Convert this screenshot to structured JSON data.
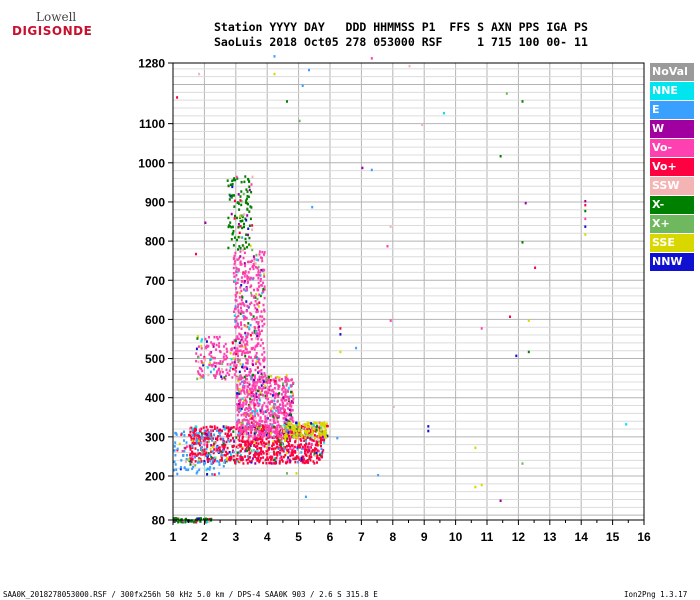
{
  "logo": {
    "line1": "Lowell",
    "line2": "DIGISONDE"
  },
  "header": {
    "line1": "Station YYYY DAY   DDD HHMMSS P1  FFS S AXN PPS IGA PS",
    "line2": "SaoLuis 2018 Oct05 278 053000 RSF     1 715 100 00- 11"
  },
  "footer": {
    "left": "SAA0K_2018278053000.RSF / 300fx256h 50 kHz 5.0 km / DPS-4 SAA0K 903 / 2.6 S 315.8 E",
    "right": "Ion2Png 1.3.17"
  },
  "legend": [
    {
      "label": "NoVal",
      "color": "#9a9a9a"
    },
    {
      "label": "NNE",
      "color": "#00e5ee"
    },
    {
      "label": "E",
      "color": "#3aa0ff"
    },
    {
      "label": "W",
      "color": "#a000a0"
    },
    {
      "label": "Vo-",
      "color": "#ff40b0"
    },
    {
      "label": "Vo+",
      "color": "#ff0040"
    },
    {
      "label": "SSW",
      "color": "#f4b4b4"
    },
    {
      "label": "X-",
      "color": "#008000"
    },
    {
      "label": "X+",
      "color": "#70b860"
    },
    {
      "label": "SSE",
      "color": "#d8d800"
    },
    {
      "label": "NNW",
      "color": "#1010d0"
    }
  ],
  "chart_data": {
    "type": "scatter",
    "title": "",
    "xlabel": "",
    "ylabel": "",
    "xlim": [
      1,
      16
    ],
    "ylim": [
      80,
      1280
    ],
    "x_ticks": [
      "1",
      "2",
      "3",
      "4",
      "5",
      "6",
      "7",
      "8",
      "9",
      "10",
      "11",
      "12",
      "13",
      "14",
      "15",
      "16"
    ],
    "y_ticks": [
      "80",
      "200",
      "300",
      "400",
      "500",
      "600",
      "700",
      "800",
      "900",
      "1000",
      "1100",
      "1280"
    ],
    "grid": true,
    "clusters": [
      {
        "name": "F-trace lower edge",
        "color": "#ff0040",
        "x_range": [
          1.5,
          5.8
        ],
        "h_range": [
          235,
          330
        ],
        "n": 900
      },
      {
        "name": "F-trace body",
        "color": "#ff40b0",
        "x_range": [
          3.0,
          4.8
        ],
        "h_range": [
          300,
          460
        ],
        "n": 700
      },
      {
        "name": "F-trace tail",
        "color": "#d8d800",
        "x_range": [
          4.5,
          5.9
        ],
        "h_range": [
          300,
          340
        ],
        "n": 220
      },
      {
        "name": "spread column",
        "color": "#ff40b0",
        "x_range": [
          2.9,
          3.9
        ],
        "h_range": [
          450,
          780
        ],
        "n": 420
      },
      {
        "name": "upper spread",
        "color": "#008000",
        "x_range": [
          2.7,
          3.5
        ],
        "h_range": [
          780,
          970
        ],
        "n": 120
      },
      {
        "name": "oblique branch",
        "color": "#ff40b0",
        "x_range": [
          1.7,
          3.0
        ],
        "h_range": [
          450,
          560
        ],
        "n": 140
      },
      {
        "name": "E-layer",
        "color": "#008000",
        "x_range": [
          1.0,
          2.2
        ],
        "h_range": [
          85,
          95
        ],
        "n": 70
      },
      {
        "name": "low echoes",
        "color": "#3aa0ff",
        "x_range": [
          1.0,
          2.6
        ],
        "h_range": [
          205,
          320
        ],
        "n": 120
      }
    ],
    "isolated_points": [
      {
        "x": 14.1,
        "h": 905,
        "color": "#a000a0"
      },
      {
        "x": 14.1,
        "h": 895,
        "color": "#ff0040"
      },
      {
        "x": 14.1,
        "h": 880,
        "color": "#008000"
      },
      {
        "x": 14.1,
        "h": 860,
        "color": "#ff40b0"
      },
      {
        "x": 14.1,
        "h": 840,
        "color": "#1010d0"
      },
      {
        "x": 14.1,
        "h": 820,
        "color": "#d8d800"
      },
      {
        "x": 12.5,
        "h": 735,
        "color": "#ff0040"
      },
      {
        "x": 12.1,
        "h": 800,
        "color": "#008000"
      },
      {
        "x": 12.1,
        "h": 1160,
        "color": "#008000"
      },
      {
        "x": 11.9,
        "h": 510,
        "color": "#1010d0"
      },
      {
        "x": 11.7,
        "h": 610,
        "color": "#ff0040"
      },
      {
        "x": 11.4,
        "h": 1020,
        "color": "#008000"
      },
      {
        "x": 12.3,
        "h": 520,
        "color": "#008000"
      },
      {
        "x": 12.3,
        "h": 600,
        "color": "#d8d800"
      },
      {
        "x": 12.2,
        "h": 900,
        "color": "#a000a0"
      },
      {
        "x": 11.6,
        "h": 1180,
        "color": "#70b860"
      },
      {
        "x": 9.1,
        "h": 330,
        "color": "#1010d0"
      },
      {
        "x": 9.1,
        "h": 318,
        "color": "#1010d0"
      },
      {
        "x": 9.6,
        "h": 1130,
        "color": "#00e5ee"
      },
      {
        "x": 10.6,
        "h": 175,
        "color": "#d8d800"
      },
      {
        "x": 10.8,
        "h": 180,
        "color": "#d8d800"
      },
      {
        "x": 10.6,
        "h": 275,
        "color": "#d8d800"
      },
      {
        "x": 11.4,
        "h": 140,
        "color": "#a000a0"
      },
      {
        "x": 10.8,
        "h": 580,
        "color": "#ff40b0"
      },
      {
        "x": 7.0,
        "h": 990,
        "color": "#a000a0"
      },
      {
        "x": 7.3,
        "h": 985,
        "color": "#3aa0ff"
      },
      {
        "x": 7.5,
        "h": 205,
        "color": "#3aa0ff"
      },
      {
        "x": 6.3,
        "h": 580,
        "color": "#ff0040"
      },
      {
        "x": 6.3,
        "h": 565,
        "color": "#1010d0"
      },
      {
        "x": 6.8,
        "h": 530,
        "color": "#3aa0ff"
      },
      {
        "x": 6.3,
        "h": 520,
        "color": "#d8d800"
      },
      {
        "x": 7.9,
        "h": 600,
        "color": "#ff40b0"
      },
      {
        "x": 8.0,
        "h": 380,
        "color": "#f4b4b4"
      },
      {
        "x": 7.9,
        "h": 840,
        "color": "#f4b4b4"
      },
      {
        "x": 7.8,
        "h": 790,
        "color": "#ff40b0"
      },
      {
        "x": 8.5,
        "h": 1250,
        "color": "#f4b4b4"
      },
      {
        "x": 8.9,
        "h": 1100,
        "color": "#f4b4b4"
      },
      {
        "x": 7.3,
        "h": 1270,
        "color": "#ff40b0"
      },
      {
        "x": 5.3,
        "h": 1240,
        "color": "#3aa0ff"
      },
      {
        "x": 5.1,
        "h": 1200,
        "color": "#3aa0ff"
      },
      {
        "x": 5.0,
        "h": 1110,
        "color": "#70b860"
      },
      {
        "x": 4.6,
        "h": 1160,
        "color": "#008000"
      },
      {
        "x": 5.4,
        "h": 890,
        "color": "#3aa0ff"
      },
      {
        "x": 6.2,
        "h": 300,
        "color": "#3aa0ff"
      },
      {
        "x": 5.2,
        "h": 150,
        "color": "#3aa0ff"
      },
      {
        "x": 4.6,
        "h": 210,
        "color": "#70b860"
      },
      {
        "x": 4.9,
        "h": 210,
        "color": "#d8d800"
      },
      {
        "x": 1.1,
        "h": 1170,
        "color": "#ff0040"
      },
      {
        "x": 1.8,
        "h": 1230,
        "color": "#f4b4b4"
      },
      {
        "x": 4.2,
        "h": 1230,
        "color": "#d8d800"
      },
      {
        "x": 2.0,
        "h": 850,
        "color": "#a000a0"
      },
      {
        "x": 1.7,
        "h": 770,
        "color": "#ff0040"
      },
      {
        "x": 5.5,
        "h": 255,
        "color": "#f4b4b4"
      },
      {
        "x": 12.1,
        "h": 235,
        "color": "#70b860"
      },
      {
        "x": 15.4,
        "h": 335,
        "color": "#00e5ee"
      },
      {
        "x": 4.2,
        "h": 1275,
        "color": "#3aa0ff"
      }
    ]
  }
}
